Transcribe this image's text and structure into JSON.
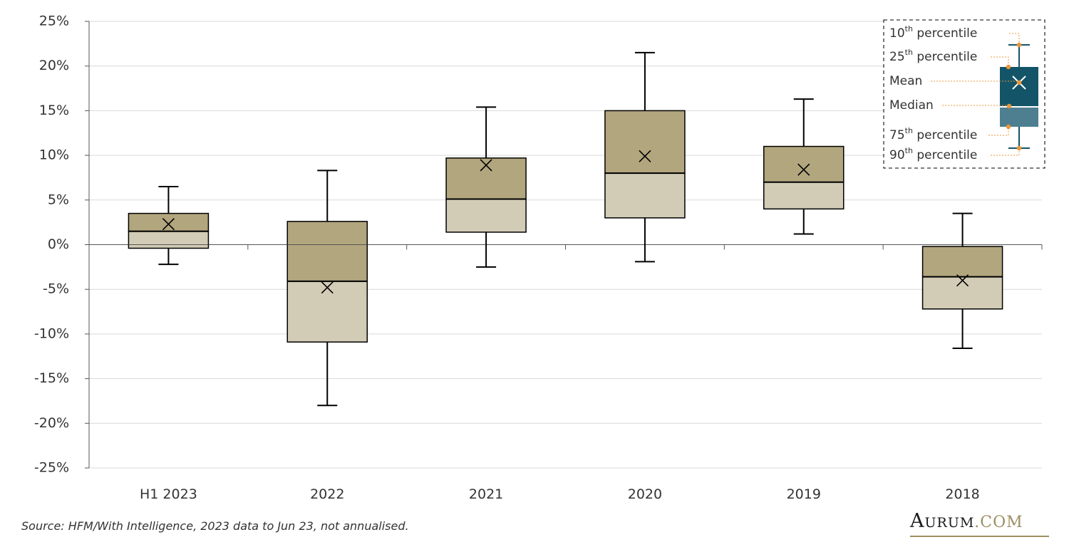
{
  "chart_data": {
    "type": "box",
    "categories": [
      "H1 2023",
      "2022",
      "2021",
      "2020",
      "2019",
      "2018"
    ],
    "boxes": [
      {
        "category": "H1 2023",
        "p10": -2.2,
        "p25": -0.4,
        "median": 1.5,
        "p75": 3.5,
        "p90": 6.5,
        "mean": 2.3
      },
      {
        "category": "2022",
        "p10": -18.0,
        "p25": -10.9,
        "median": -4.1,
        "p75": 2.6,
        "p90": 8.3,
        "mean": -4.8
      },
      {
        "category": "2021",
        "p10": -2.5,
        "p25": 1.4,
        "median": 5.1,
        "p75": 9.7,
        "p90": 15.4,
        "mean": 8.9
      },
      {
        "category": "2020",
        "p10": -1.9,
        "p25": 3.0,
        "median": 8.0,
        "p75": 15.0,
        "p90": 21.5,
        "mean": 9.9
      },
      {
        "category": "2019",
        "p10": 1.2,
        "p25": 4.0,
        "median": 7.0,
        "p75": 11.0,
        "p90": 16.3,
        "mean": 8.4
      },
      {
        "category": "2018",
        "p10": -11.6,
        "p25": -7.2,
        "median": -3.6,
        "p75": -0.2,
        "p90": 3.5,
        "mean": -4.0
      }
    ],
    "y_ticks": [
      25,
      20,
      15,
      10,
      5,
      0,
      -5,
      -10,
      -15,
      -20,
      -25
    ],
    "y_tick_labels": [
      "25%",
      "20%",
      "15%",
      "10%",
      "5%",
      "0%",
      "-5%",
      "-10%",
      "-15%",
      "-20%",
      "-25%"
    ],
    "ylim": [
      -25,
      25
    ],
    "grid": "horizontal",
    "legend_placement": "top-right",
    "legend": {
      "items": [
        {
          "sup_num": "10",
          "sup": "th",
          "label": " percentile"
        },
        {
          "sup_num": "25",
          "sup": "th",
          "label": " percentile"
        },
        {
          "sup_num": "",
          "sup": "",
          "label": "Mean"
        },
        {
          "sup_num": "",
          "sup": "",
          "label": "Median"
        },
        {
          "sup_num": "75",
          "sup": "th",
          "label": " percentile"
        },
        {
          "sup_num": "90",
          "sup": "th",
          "label": " percentile"
        }
      ]
    },
    "colors": {
      "upper_box": "#b2a67e",
      "lower_box": "#d2ccb6",
      "legend_upper": "#135468",
      "legend_lower": "#4d7f90",
      "legend_accent": "#e8973a"
    }
  },
  "footer": {
    "source": "Source: HFM/With Intelligence, 2023 data to Jun 23, not annualised.",
    "logo_main": "Aurum",
    "logo_dot": ".COM"
  }
}
